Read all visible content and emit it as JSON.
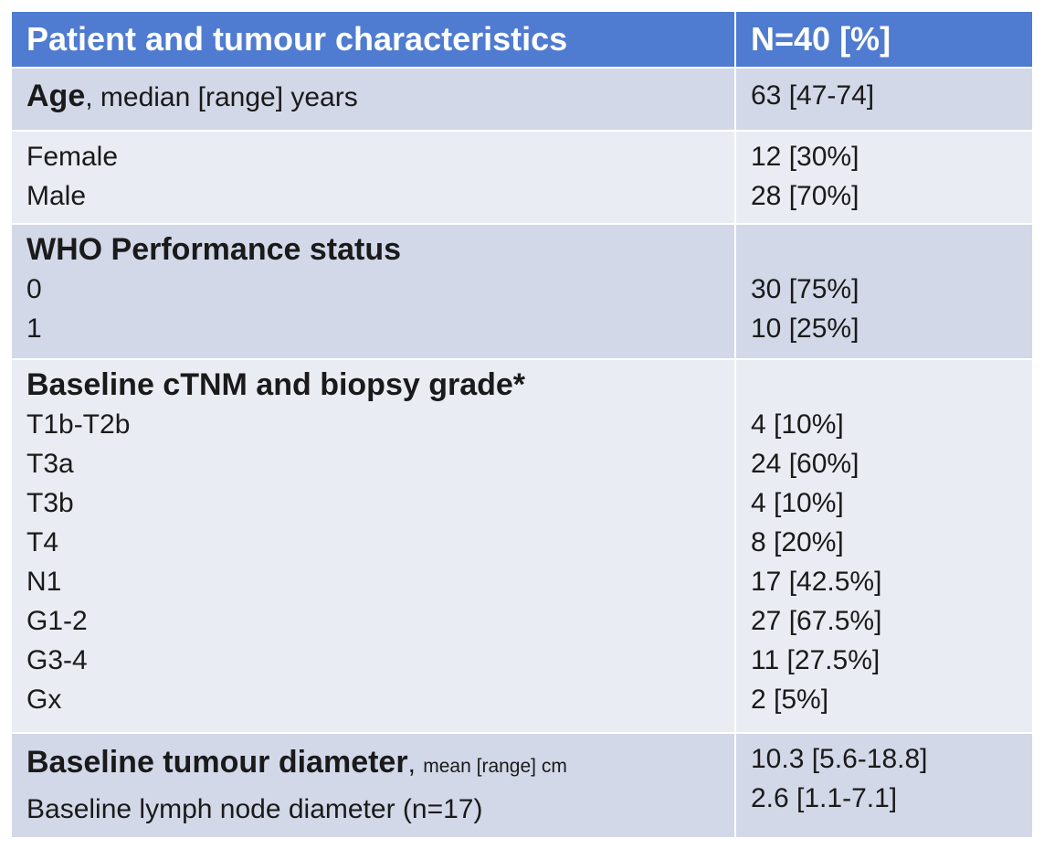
{
  "header": {
    "characteristics": "Patient and tumour characteristics",
    "n_column": "N=40 [%]"
  },
  "age": {
    "label_bold": "Age",
    "label_rest": ", median [range] years",
    "value": "63 [47-74]"
  },
  "sex": [
    {
      "label": "Female",
      "value": "12 [30%]"
    },
    {
      "label": "Male",
      "value": "28 [70%]"
    }
  ],
  "who": {
    "heading": "WHO Performance status",
    "rows": [
      {
        "label": "0",
        "value": "30 [75%]"
      },
      {
        "label": "1",
        "value": "10 [25%]"
      }
    ]
  },
  "tnm": {
    "heading": "Baseline cTNM and biopsy grade*",
    "rows": [
      {
        "label": "T1b-T2b",
        "value": "4 [10%]"
      },
      {
        "label": "T3a",
        "value": "24 [60%]"
      },
      {
        "label": "T3b",
        "value": "4 [10%]"
      },
      {
        "label": "T4",
        "value": "8 [20%]"
      },
      {
        "label": "N1",
        "value": "17 [42.5%]"
      },
      {
        "label": "G1-2",
        "value": "27 [67.5%]"
      },
      {
        "label": "G3-4",
        "value": "11 [27.5%]"
      },
      {
        "label": "Gx",
        "value": "2 [5%]"
      }
    ]
  },
  "diameter": {
    "tumour_bold": "Baseline tumour diameter",
    "tumour_comma": ",",
    "tumour_small": "mean [range] cm",
    "tumour_value": "10.3 [5.6-18.8]",
    "lymph_label": "Baseline lymph node diameter (n=17)",
    "lymph_value": "2.6 [1.1-7.1]"
  }
}
